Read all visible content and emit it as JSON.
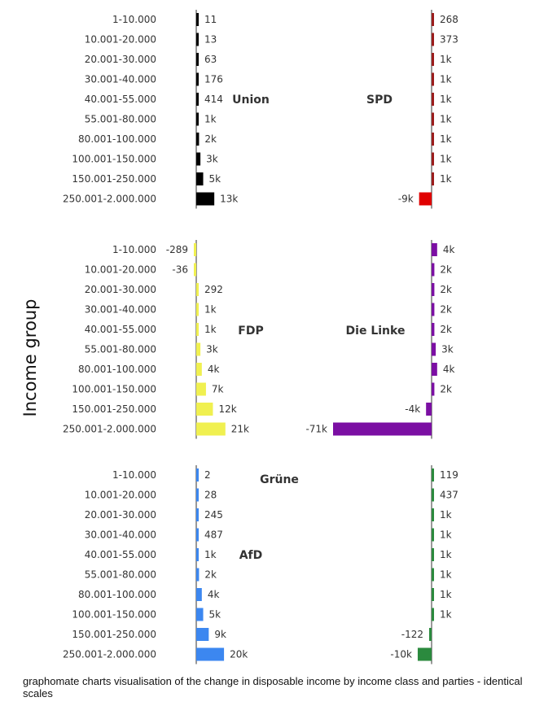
{
  "chart_data": {
    "type": "bar",
    "orientation": "horizontal",
    "categories": [
      "1-10.000",
      "10.001-20.000",
      "20.001-30.000",
      "30.001-40.000",
      "40.001-55.000",
      "55.001-80.000",
      "80.001-100.000",
      "100.001-150.000",
      "150.001-250.000",
      "250.001-2.000.000"
    ],
    "ylabel": "Income group",
    "caption": "graphomate charts visualisation of the change in disposable income by income class and parties - identical scales",
    "series": [
      {
        "name": "Union",
        "color": "#000000",
        "values": [
          11,
          13,
          63,
          176,
          414,
          1000,
          2000,
          3000,
          5000,
          13000
        ],
        "labels": [
          "11",
          "13",
          "63",
          "176",
          "414",
          "1k",
          "2k",
          "3k",
          "5k",
          "13k"
        ]
      },
      {
        "name": "SPD",
        "color": "#9b1c1c",
        "highlight_color": "#e00000",
        "values": [
          268,
          373,
          1000,
          1000,
          1000,
          1000,
          1000,
          1000,
          1000,
          -9000
        ],
        "labels": [
          "268",
          "373",
          "1k",
          "1k",
          "1k",
          "1k",
          "1k",
          "1k",
          "1k",
          "-9k"
        ]
      },
      {
        "name": "FDP",
        "color": "#f0f050",
        "values": [
          -289,
          -36,
          292,
          1000,
          1000,
          3000,
          4000,
          7000,
          12000,
          21000
        ],
        "labels": [
          "-289",
          "-36",
          "292",
          "1k",
          "1k",
          "3k",
          "4k",
          "7k",
          "12k",
          "21k"
        ]
      },
      {
        "name": "Die Linke",
        "color": "#7b0fa3",
        "values": [
          4000,
          2000,
          2000,
          2000,
          2000,
          3000,
          4000,
          2000,
          -4000,
          -71000
        ],
        "labels": [
          "4k",
          "2k",
          "2k",
          "2k",
          "2k",
          "3k",
          "4k",
          "2k",
          "-4k",
          "-71k"
        ]
      },
      {
        "name": "AfD",
        "color": "#3c87f0",
        "values": [
          2,
          28,
          245,
          487,
          1000,
          2000,
          4000,
          5000,
          9000,
          20000
        ],
        "labels": [
          "2",
          "28",
          "245",
          "487",
          "1k",
          "2k",
          "4k",
          "5k",
          "9k",
          "20k"
        ]
      },
      {
        "name": "Grüne",
        "color": "#2b8a3e",
        "values": [
          119,
          437,
          1000,
          1000,
          1000,
          1000,
          1000,
          1000,
          -122,
          -10000
        ],
        "labels": [
          "119",
          "437",
          "1k",
          "1k",
          "1k",
          "1k",
          "1k",
          "1k",
          "-122",
          "-10k"
        ]
      }
    ]
  }
}
